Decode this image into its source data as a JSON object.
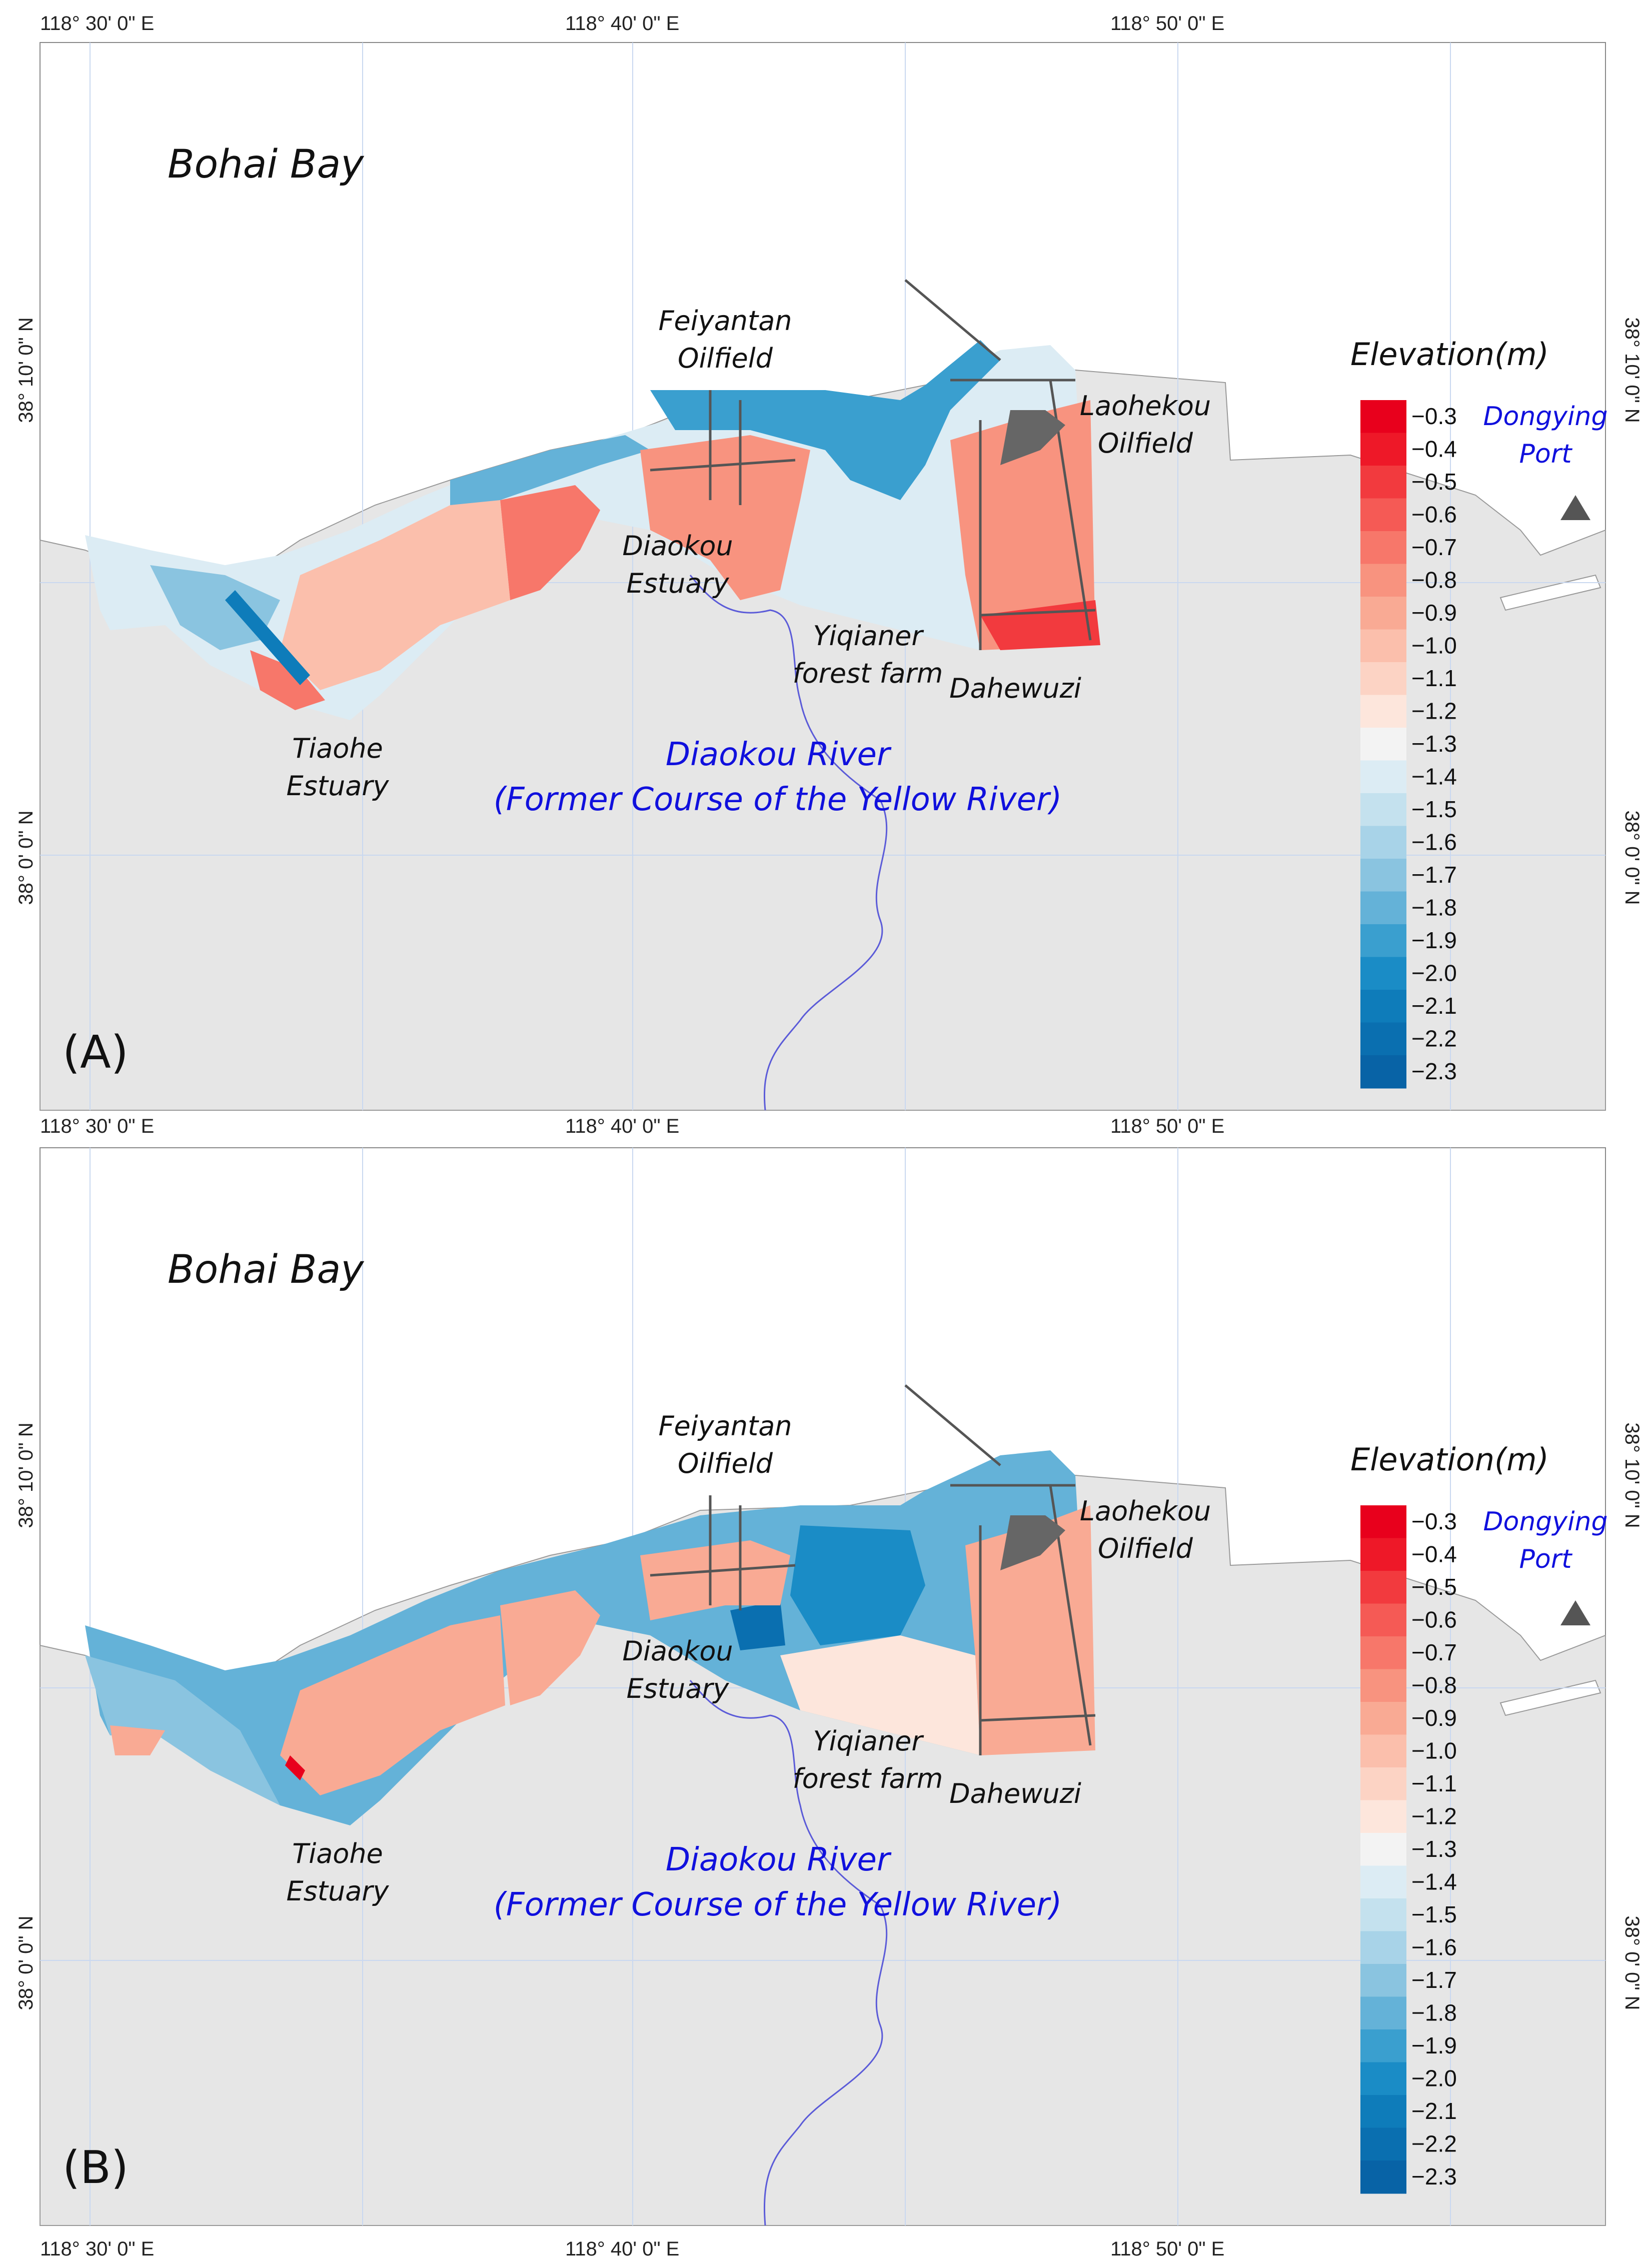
{
  "panels": [
    {
      "label": "(A)",
      "top_lon": [
        "118° 30' 0\" E",
        "118° 40' 0\" E",
        "118° 50' 0\" E"
      ],
      "bottom_lon": [
        "118° 30' 0\" E",
        "118° 40' 0\" E",
        "118° 50' 0\" E"
      ],
      "lat_left": [
        "38° 10' 0\" N",
        "38° 0' 0\" N"
      ],
      "lat_right": [
        "38° 10' 0\" N",
        "38° 0' 0\" N"
      ],
      "legend": {
        "title": "Elevation(m)",
        "ticks": [
          "−0.3",
          "−0.4",
          "−0.5",
          "−0.6",
          "−0.7",
          "−0.8",
          "−0.9",
          "−1.0",
          "−1.1",
          "−1.2",
          "−1.3",
          "−1.4",
          "−1.5",
          "−1.6",
          "−1.7",
          "−1.8",
          "−1.9",
          "−2.0",
          "−2.1",
          "−2.2",
          "−2.3"
        ],
        "colors": [
          "#e8001c",
          "#ee1828",
          "#f23a3e",
          "#f55a55",
          "#f7776a",
          "#f8937f",
          "#f9aa94",
          "#fbbfac",
          "#fcd3c4",
          "#fde6dc",
          "#f3f3f3",
          "#dcecf4",
          "#c4e1ee",
          "#a8d3e8",
          "#8ac4e0",
          "#64b2d8",
          "#3a9fcf",
          "#1a8cc6",
          "#0e7cba",
          "#0a6fb0",
          "#0863a6"
        ]
      },
      "labels": {
        "bohai_bay": "Bohai Bay",
        "feiyantan": [
          "Feiyantan",
          "Oilfield"
        ],
        "laohekou": [
          "Laohekou",
          "Oilfield"
        ],
        "dongying": [
          "Dongying",
          "Port"
        ],
        "diaokou_estuary": [
          "Diaokou",
          "Estuary"
        ],
        "yiqianer": [
          "Yiqianer",
          "forest farm"
        ],
        "dahewuzi": "Dahewuzi",
        "tiaohe": [
          "Tiaohe",
          "Estuary"
        ],
        "river": [
          "Diaokou River",
          "(Former Course of the Yellow River)"
        ]
      }
    },
    {
      "label": "(B)",
      "top_lon": [],
      "bottom_lon": [
        "118° 30' 0\" E",
        "118° 40' 0\" E",
        "118° 50' 0\" E"
      ],
      "lat_left": [
        "38° 10' 0\" N",
        "38° 0' 0\" N"
      ],
      "lat_right": [
        "38° 10' 0\" N",
        "38° 0' 0\" N"
      ],
      "legend": {
        "title": "Elevation(m)",
        "ticks": [
          "−0.3",
          "−0.4",
          "−0.5",
          "−0.6",
          "−0.7",
          "−0.8",
          "−0.9",
          "−1.0",
          "−1.1",
          "−1.2",
          "−1.3",
          "−1.4",
          "−1.5",
          "−1.6",
          "−1.7",
          "−1.8",
          "−1.9",
          "−2.0",
          "−2.1",
          "−2.2",
          "−2.3"
        ],
        "colors": [
          "#e8001c",
          "#ee1828",
          "#f23a3e",
          "#f55a55",
          "#f7776a",
          "#f8937f",
          "#f9aa94",
          "#fbbfac",
          "#fcd3c4",
          "#fde6dc",
          "#f3f3f3",
          "#dcecf4",
          "#c4e1ee",
          "#a8d3e8",
          "#8ac4e0",
          "#64b2d8",
          "#3a9fcf",
          "#1a8cc6",
          "#0e7cba",
          "#0a6fb0",
          "#0863a6"
        ]
      },
      "labels": {
        "bohai_bay": "Bohai Bay",
        "feiyantan": [
          "Feiyantan",
          "Oilfield"
        ],
        "laohekou": [
          "Laohekou",
          "Oilfield"
        ],
        "dongying": [
          "Dongying",
          "Port"
        ],
        "diaokou_estuary": [
          "Diaokou",
          "Estuary"
        ],
        "yiqianer": [
          "Yiqianer",
          "forest farm"
        ],
        "dahewuzi": "Dahewuzi",
        "tiaohe": [
          "Tiaohe",
          "Estuary"
        ],
        "river": [
          "Diaokou River",
          "(Former Course of the Yellow River)"
        ]
      }
    }
  ],
  "colors": {
    "land": "#e6e6e6",
    "sea": "#ffffff",
    "river": "#5b5bd8",
    "graticule": "#c9d8f0",
    "infrastructure": "#555555",
    "deep": "#1a8cc6",
    "mid_blue": "#8ac4e0",
    "light_blue": "#dcecf4",
    "light_red": "#fbbfac",
    "mid_red": "#f7776a",
    "strong_red": "#e8001c"
  },
  "icons": {
    "port_marker": "triangle-icon"
  }
}
